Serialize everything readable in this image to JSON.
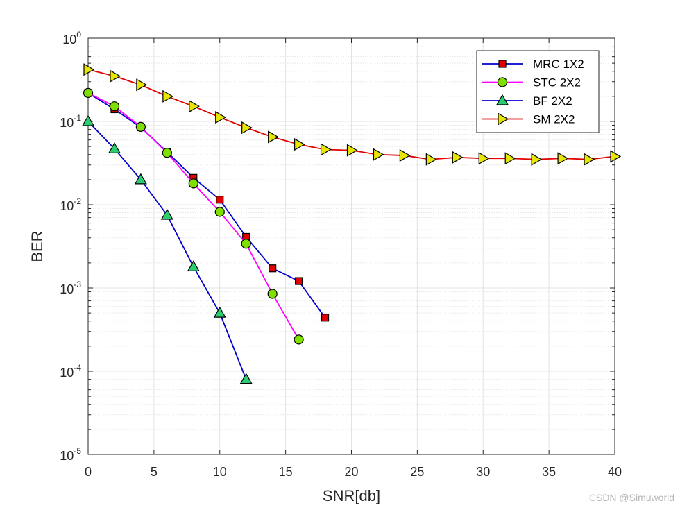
{
  "chart_data": {
    "type": "line",
    "xscale": "linear",
    "yscale": "log",
    "xlabel": "SNR[db]",
    "ylabel": "BER",
    "xlim": [
      0,
      40
    ],
    "ylim": [
      1e-05,
      1
    ],
    "xticks": [
      0,
      5,
      10,
      15,
      20,
      25,
      30,
      35,
      40
    ],
    "yticks": [
      {
        "base": "10",
        "exp": "0",
        "value": 1
      },
      {
        "base": "10",
        "exp": "-1",
        "value": 0.1
      },
      {
        "base": "10",
        "exp": "-2",
        "value": 0.01
      },
      {
        "base": "10",
        "exp": "-3",
        "value": 0.001
      },
      {
        "base": "10",
        "exp": "-4",
        "value": 0.0001
      },
      {
        "base": "10",
        "exp": "-5",
        "value": 1e-05
      }
    ],
    "grid": true,
    "minor_grid": true,
    "legend_position": "top-right",
    "series": [
      {
        "name": "MRC 1X2",
        "line_color": "#0000cd",
        "marker": "square",
        "marker_fill": "#e00000",
        "x": [
          0,
          2,
          4,
          6,
          8,
          10,
          12,
          14,
          16,
          18
        ],
        "y": [
          0.22,
          0.14,
          0.085,
          0.043,
          0.021,
          0.0115,
          0.0041,
          0.00172,
          0.00121,
          0.00044
        ]
      },
      {
        "name": "STC 2X2",
        "line_color": "#ff00ff",
        "marker": "circle",
        "marker_fill": "#7fe000",
        "x": [
          0,
          2,
          4,
          6,
          8,
          10,
          12,
          14,
          16
        ],
        "y": [
          0.22,
          0.152,
          0.086,
          0.042,
          0.018,
          0.0082,
          0.0034,
          0.00085,
          0.00024
        ]
      },
      {
        "name": "BF 2X2",
        "line_color": "#0000cd",
        "marker": "triangle-up",
        "marker_fill": "#2ecc71",
        "x": [
          0,
          2,
          4,
          6,
          8,
          10,
          12
        ],
        "y": [
          0.1,
          0.047,
          0.02,
          0.0075,
          0.0018,
          0.0005,
          8e-05
        ]
      },
      {
        "name": "SM 2X2",
        "line_color": "#e00000",
        "marker": "triangle-right",
        "marker_fill": "#e6e600",
        "x": [
          0,
          2,
          4,
          6,
          8,
          10,
          12,
          14,
          16,
          18,
          20,
          22,
          24,
          26,
          28,
          30,
          32,
          34,
          36,
          38,
          40
        ],
        "y": [
          0.42,
          0.35,
          0.275,
          0.2,
          0.152,
          0.112,
          0.084,
          0.065,
          0.053,
          0.046,
          0.045,
          0.04,
          0.039,
          0.035,
          0.037,
          0.036,
          0.036,
          0.035,
          0.036,
          0.035,
          0.038
        ]
      }
    ]
  },
  "watermark": "CSDN @Simuworld"
}
